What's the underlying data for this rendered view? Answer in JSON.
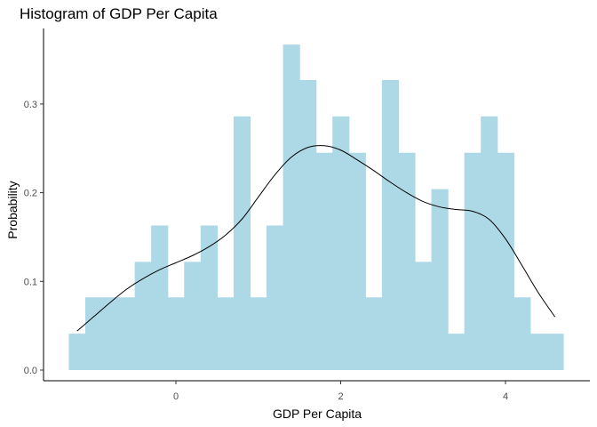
{
  "chart_data": {
    "type": "bar",
    "title": "Histogram of GDP Per Capita",
    "xlabel": "GDP Per Capita",
    "ylabel": "Probability",
    "xlim": [
      -1.5,
      5.0
    ],
    "ylim": [
      -0.01,
      0.385
    ],
    "xticks": [
      0,
      2,
      4
    ],
    "yticks": [
      0.0,
      0.1,
      0.2,
      0.3
    ],
    "ytick_labels": [
      "0.0",
      "0.1",
      "0.2",
      "0.3"
    ],
    "bin_width": 0.2,
    "bins": {
      "x_start": [
        -1.3,
        -1.1,
        -0.9,
        -0.7,
        -0.5,
        -0.3,
        -0.1,
        0.1,
        0.3,
        0.5,
        0.7,
        0.9,
        1.1,
        1.3,
        1.5,
        1.7,
        1.9,
        2.1,
        2.3,
        2.5,
        2.7,
        2.9,
        3.1,
        3.3,
        3.5,
        3.7,
        3.9,
        4.1,
        4.3,
        4.5
      ],
      "density": [
        0.041,
        0.082,
        0.082,
        0.082,
        0.122,
        0.163,
        0.082,
        0.122,
        0.163,
        0.082,
        0.286,
        0.082,
        0.163,
        0.367,
        0.327,
        0.245,
        0.286,
        0.245,
        0.082,
        0.327,
        0.245,
        0.122,
        0.204,
        0.041,
        0.245,
        0.286,
        0.245,
        0.082,
        0.041,
        0.041
      ]
    },
    "density_curve": {
      "x": [
        -1.2,
        -1.0,
        -0.8,
        -0.6,
        -0.4,
        -0.2,
        0.0,
        0.2,
        0.4,
        0.6,
        0.8,
        1.0,
        1.2,
        1.4,
        1.6,
        1.8,
        2.0,
        2.2,
        2.4,
        2.6,
        2.8,
        3.0,
        3.2,
        3.4,
        3.6,
        3.8,
        4.0,
        4.2,
        4.4,
        4.6
      ],
      "y": [
        0.044,
        0.06,
        0.076,
        0.091,
        0.103,
        0.113,
        0.121,
        0.129,
        0.139,
        0.152,
        0.17,
        0.195,
        0.22,
        0.24,
        0.251,
        0.253,
        0.248,
        0.237,
        0.225,
        0.212,
        0.2,
        0.19,
        0.184,
        0.181,
        0.179,
        0.17,
        0.148,
        0.118,
        0.087,
        0.06
      ]
    },
    "bar_color": "#ADD8E6",
    "curve_color": "#000000",
    "grid": false
  }
}
